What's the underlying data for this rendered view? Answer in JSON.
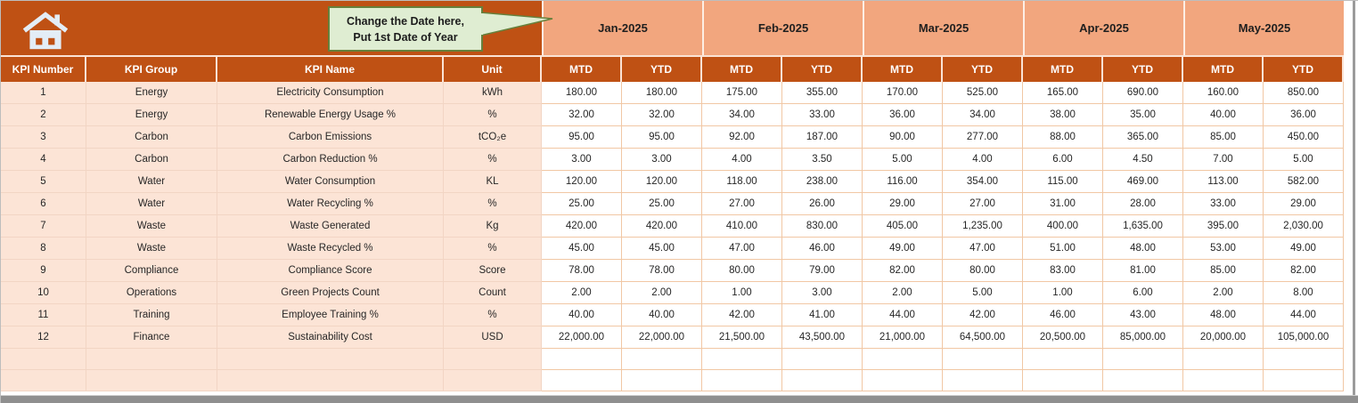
{
  "callout": {
    "line1": "Change the Date here,",
    "line2": "Put 1st Date of Year"
  },
  "icons": {
    "home": "home-icon"
  },
  "colors": {
    "header_orange": "#BF5114",
    "month_salmon": "#F2A67E",
    "row_pink": "#FCE4D6",
    "grid_border": "#F1C7A4",
    "callout_bg": "#DFEDD2",
    "callout_border": "#66803C",
    "header_text": "#FFFFFF",
    "body_text": "#262626"
  },
  "table": {
    "columns": [
      "KPI Number",
      "KPI Group",
      "KPI Name",
      "Unit"
    ],
    "months": [
      "Jan-2025",
      "Feb-2025",
      "Mar-2025",
      "Apr-2025",
      "May-2025"
    ],
    "sub_columns": [
      "MTD",
      "YTD"
    ],
    "empty_row_count": 2,
    "rows": [
      {
        "kpi_number": "1",
        "kpi_group": "Energy",
        "kpi_name": "Electricity Consumption",
        "unit": "kWh",
        "values": [
          "180.00",
          "180.00",
          "175.00",
          "355.00",
          "170.00",
          "525.00",
          "165.00",
          "690.00",
          "160.00",
          "850.00"
        ]
      },
      {
        "kpi_number": "2",
        "kpi_group": "Energy",
        "kpi_name": "Renewable Energy Usage %",
        "unit": "%",
        "values": [
          "32.00",
          "32.00",
          "34.00",
          "33.00",
          "36.00",
          "34.00",
          "38.00",
          "35.00",
          "40.00",
          "36.00"
        ]
      },
      {
        "kpi_number": "3",
        "kpi_group": "Carbon",
        "kpi_name": "Carbon Emissions",
        "unit": "tCO₂e",
        "values": [
          "95.00",
          "95.00",
          "92.00",
          "187.00",
          "90.00",
          "277.00",
          "88.00",
          "365.00",
          "85.00",
          "450.00"
        ]
      },
      {
        "kpi_number": "4",
        "kpi_group": "Carbon",
        "kpi_name": "Carbon Reduction %",
        "unit": "%",
        "values": [
          "3.00",
          "3.00",
          "4.00",
          "3.50",
          "5.00",
          "4.00",
          "6.00",
          "4.50",
          "7.00",
          "5.00"
        ]
      },
      {
        "kpi_number": "5",
        "kpi_group": "Water",
        "kpi_name": "Water Consumption",
        "unit": "KL",
        "values": [
          "120.00",
          "120.00",
          "118.00",
          "238.00",
          "116.00",
          "354.00",
          "115.00",
          "469.00",
          "113.00",
          "582.00"
        ]
      },
      {
        "kpi_number": "6",
        "kpi_group": "Water",
        "kpi_name": "Water Recycling %",
        "unit": "%",
        "values": [
          "25.00",
          "25.00",
          "27.00",
          "26.00",
          "29.00",
          "27.00",
          "31.00",
          "28.00",
          "33.00",
          "29.00"
        ]
      },
      {
        "kpi_number": "7",
        "kpi_group": "Waste",
        "kpi_name": "Waste Generated",
        "unit": "Kg",
        "values": [
          "420.00",
          "420.00",
          "410.00",
          "830.00",
          "405.00",
          "1,235.00",
          "400.00",
          "1,635.00",
          "395.00",
          "2,030.00"
        ]
      },
      {
        "kpi_number": "8",
        "kpi_group": "Waste",
        "kpi_name": "Waste Recycled %",
        "unit": "%",
        "values": [
          "45.00",
          "45.00",
          "47.00",
          "46.00",
          "49.00",
          "47.00",
          "51.00",
          "48.00",
          "53.00",
          "49.00"
        ]
      },
      {
        "kpi_number": "9",
        "kpi_group": "Compliance",
        "kpi_name": "Compliance Score",
        "unit": "Score",
        "values": [
          "78.00",
          "78.00",
          "80.00",
          "79.00",
          "82.00",
          "80.00",
          "83.00",
          "81.00",
          "85.00",
          "82.00"
        ]
      },
      {
        "kpi_number": "10",
        "kpi_group": "Operations",
        "kpi_name": "Green Projects Count",
        "unit": "Count",
        "values": [
          "2.00",
          "2.00",
          "1.00",
          "3.00",
          "2.00",
          "5.00",
          "1.00",
          "6.00",
          "2.00",
          "8.00"
        ]
      },
      {
        "kpi_number": "11",
        "kpi_group": "Training",
        "kpi_name": "Employee Training %",
        "unit": "%",
        "values": [
          "40.00",
          "40.00",
          "42.00",
          "41.00",
          "44.00",
          "42.00",
          "46.00",
          "43.00",
          "48.00",
          "44.00"
        ]
      },
      {
        "kpi_number": "12",
        "kpi_group": "Finance",
        "kpi_name": "Sustainability Cost",
        "unit": "USD",
        "values": [
          "22,000.00",
          "22,000.00",
          "21,500.00",
          "43,500.00",
          "21,000.00",
          "64,500.00",
          "20,500.00",
          "85,000.00",
          "20,000.00",
          "105,000.00"
        ]
      }
    ]
  }
}
